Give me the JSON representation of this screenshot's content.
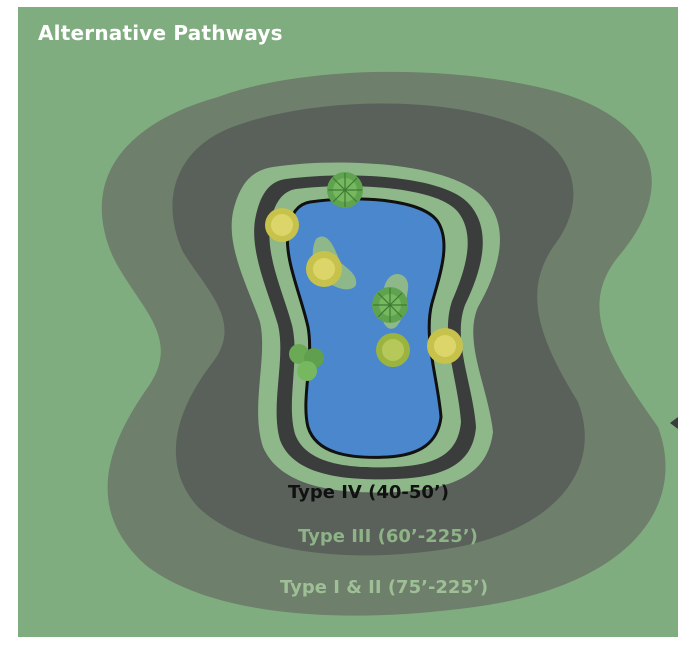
{
  "title": "Alternative Pathways",
  "zones": [
    {
      "label": "Type IV (40-50’)",
      "color": "#111111"
    },
    {
      "label": "Type III (60’-225’)",
      "color": "#8db386"
    },
    {
      "label": "Type I & II (75’-225’)",
      "color": "#9fbf97"
    }
  ],
  "colors": {
    "background": "#80ad7f",
    "outer_zone": "#6e7f6b",
    "middle_zone": "#5a605a",
    "inner_band": "#8fb88a",
    "pond": "#4a87cc",
    "pond_outline": "#111111"
  }
}
